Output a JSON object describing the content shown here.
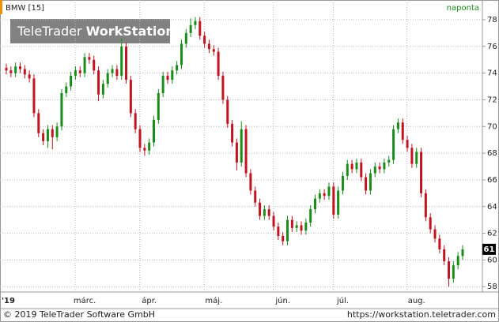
{
  "chart_data": {
    "type": "candlestick",
    "title": "BMW [15]",
    "period": "naponta",
    "watermark": {
      "brand": "TeleTrader",
      "product": "WorkStation"
    },
    "footer_left": "© 2019 TeleTrader Software GmbH",
    "footer_right": "https://workstation.teletrader.com",
    "last_label": "61",
    "categories": [
      "'19",
      null,
      null,
      null,
      null,
      null,
      null,
      null,
      null,
      null,
      null,
      null,
      null,
      null,
      null,
      null,
      null,
      "márc.",
      null,
      null,
      null,
      null,
      null,
      null,
      null,
      null,
      null,
      null,
      null,
      null,
      null,
      "ápr.",
      null,
      null,
      null,
      null,
      null,
      null,
      null,
      null,
      null,
      null,
      null,
      null,
      null,
      "máj.",
      null,
      null,
      null,
      null,
      null,
      null,
      null,
      null,
      null,
      null,
      null,
      null,
      null,
      null,
      "jún.",
      null,
      null,
      null,
      null,
      null,
      null,
      null,
      null,
      null,
      null,
      null,
      null,
      "júl.",
      null,
      null,
      null,
      null,
      null,
      null,
      null,
      null,
      null,
      null,
      null,
      null,
      null,
      null,
      null,
      "aug.",
      null,
      null,
      null,
      null,
      null,
      null,
      null,
      null,
      null,
      null
    ],
    "open": [
      74.4,
      74.2,
      74.0,
      74.5,
      74.3,
      73.9,
      73.6,
      71.0,
      69.5,
      68.9,
      69.8,
      69.2,
      70.0,
      72.5,
      73.0,
      73.8,
      74.2,
      74.0,
      75.2,
      75.0,
      74.2,
      72.4,
      73.2,
      74.0,
      74.3,
      73.8,
      76.0,
      73.5,
      71.0,
      69.8,
      68.4,
      68.2,
      68.8,
      70.5,
      72.5,
      73.8,
      73.5,
      74.2,
      74.6,
      76.2,
      77.0,
      77.6,
      77.9,
      76.8,
      76.2,
      75.8,
      75.6,
      73.8,
      72.0,
      70.2,
      68.8,
      67.3,
      69.8,
      66.5,
      65.2,
      64.3,
      63.3,
      63.8,
      63.3,
      62.5,
      61.8,
      61.4,
      63.0,
      62.4,
      62.6,
      62.2,
      62.8,
      63.8,
      64.6,
      65.0,
      64.8,
      65.5,
      63.4,
      65.2,
      66.3,
      67.2,
      66.8,
      67.3,
      66.2,
      65.2,
      66.5,
      67.0,
      66.8,
      67.3,
      67.5,
      69.8,
      70.3,
      69.0,
      68.4,
      67.2,
      68.1,
      65.0,
      63.2,
      62.3,
      61.6,
      60.8,
      59.9,
      58.6,
      59.6,
      60.3
    ],
    "high": [
      74.7,
      74.5,
      74.8,
      74.8,
      74.6,
      74.2,
      73.9,
      71.3,
      69.8,
      70.1,
      70.1,
      70.3,
      72.8,
      73.3,
      74.1,
      74.5,
      74.5,
      75.5,
      75.5,
      75.3,
      74.5,
      73.5,
      74.3,
      74.6,
      74.6,
      76.6,
      76.3,
      73.8,
      71.3,
      70.1,
      68.7,
      69.1,
      70.8,
      72.8,
      74.1,
      74.1,
      74.5,
      74.9,
      76.5,
      77.3,
      78.1,
      78.2,
      78.2,
      77.1,
      76.5,
      76.1,
      75.9,
      74.1,
      72.3,
      70.5,
      69.1,
      70.4,
      70.1,
      66.8,
      65.5,
      64.6,
      64.1,
      64.1,
      63.6,
      62.8,
      62.1,
      63.3,
      63.3,
      62.9,
      62.9,
      63.1,
      64.1,
      64.9,
      65.3,
      65.3,
      65.8,
      65.8,
      65.5,
      66.6,
      67.5,
      67.5,
      67.6,
      67.6,
      66.5,
      66.8,
      67.3,
      67.3,
      67.6,
      67.8,
      70.1,
      70.6,
      70.6,
      69.3,
      68.7,
      68.4,
      68.4,
      65.3,
      63.5,
      62.6,
      61.9,
      61.1,
      60.2,
      59.9,
      60.6,
      61.1
    ],
    "low": [
      73.9,
      73.7,
      73.7,
      74.0,
      73.6,
      73.3,
      70.7,
      69.2,
      68.6,
      68.4,
      68.3,
      68.9,
      69.7,
      72.2,
      72.7,
      73.5,
      73.7,
      73.7,
      74.7,
      73.9,
      71.9,
      72.1,
      72.9,
      73.7,
      73.5,
      73.5,
      73.2,
      70.7,
      69.5,
      68.1,
      67.8,
      67.9,
      68.5,
      70.2,
      72.2,
      73.2,
      73.2,
      73.9,
      74.3,
      75.9,
      76.7,
      77.3,
      76.5,
      75.9,
      75.5,
      75.3,
      73.5,
      71.7,
      69.9,
      68.5,
      66.7,
      67.0,
      66.2,
      64.9,
      64.0,
      63.0,
      63.0,
      63.0,
      62.2,
      61.5,
      61.1,
      61.1,
      62.1,
      62.1,
      61.9,
      61.9,
      62.5,
      63.5,
      64.3,
      64.5,
      64.5,
      63.1,
      63.1,
      64.9,
      66.0,
      66.5,
      66.5,
      65.9,
      64.9,
      64.9,
      66.2,
      66.5,
      66.5,
      67.0,
      67.2,
      69.5,
      68.7,
      68.1,
      66.9,
      66.9,
      64.7,
      62.9,
      62.0,
      61.3,
      60.5,
      59.6,
      58.0,
      58.3,
      59.3,
      60.0
    ],
    "close": [
      74.2,
      74.0,
      74.5,
      74.3,
      73.9,
      73.6,
      71.0,
      69.5,
      68.9,
      69.8,
      69.2,
      70.0,
      72.5,
      73.0,
      73.8,
      74.2,
      74.0,
      75.2,
      75.0,
      74.2,
      72.4,
      73.2,
      74.0,
      74.3,
      73.8,
      76.0,
      73.5,
      71.0,
      69.8,
      68.4,
      68.2,
      68.8,
      70.5,
      72.5,
      73.8,
      73.5,
      74.2,
      74.6,
      76.2,
      77.0,
      77.6,
      77.9,
      76.8,
      76.2,
      75.8,
      75.6,
      73.8,
      72.0,
      70.2,
      68.8,
      67.3,
      69.8,
      66.5,
      65.2,
      64.3,
      63.3,
      63.8,
      63.3,
      62.5,
      61.8,
      61.4,
      63.0,
      62.4,
      62.6,
      62.2,
      62.8,
      63.8,
      64.6,
      65.0,
      64.8,
      65.5,
      63.4,
      65.2,
      66.3,
      67.2,
      66.8,
      67.3,
      66.2,
      65.2,
      66.5,
      67.0,
      66.8,
      67.3,
      67.5,
      69.8,
      70.3,
      69.0,
      68.4,
      67.2,
      68.1,
      65.0,
      63.2,
      62.3,
      61.6,
      60.8,
      59.9,
      58.6,
      59.6,
      60.3,
      60.8
    ],
    "up_color": "#1a8c1a",
    "down_color": "#c01420",
    "ylim": [
      57.6,
      79.3
    ],
    "yticks": [
      58,
      60,
      62,
      64,
      66,
      68,
      70,
      72,
      74,
      76,
      78
    ],
    "grid": true
  }
}
